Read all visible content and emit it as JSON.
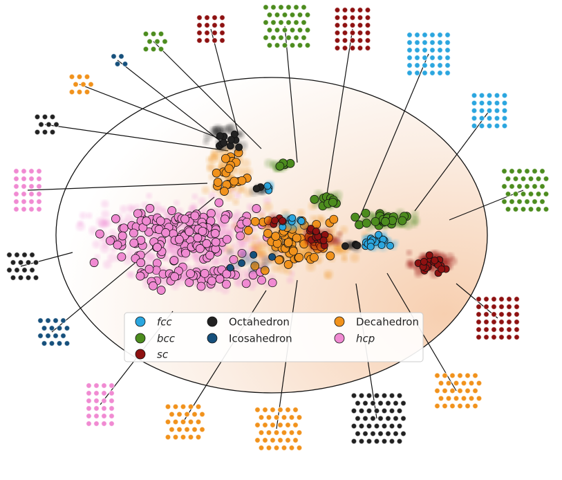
{
  "legend": {
    "items": [
      {
        "label": "fcc",
        "color": "#2ba6df",
        "italic": true
      },
      {
        "label": "bcc",
        "color": "#4c8c1e",
        "italic": true
      },
      {
        "label": "sc",
        "color": "#8e1111",
        "italic": true
      },
      {
        "label": "Octahedron",
        "color": "#222222",
        "italic": false
      },
      {
        "label": "Icosahedron",
        "color": "#16507c",
        "italic": false
      },
      {
        "label": "Decahedron",
        "color": "#f1921c",
        "italic": false
      },
      {
        "label": "hcp",
        "color": "#f08ad2",
        "italic": true
      }
    ]
  }
}
